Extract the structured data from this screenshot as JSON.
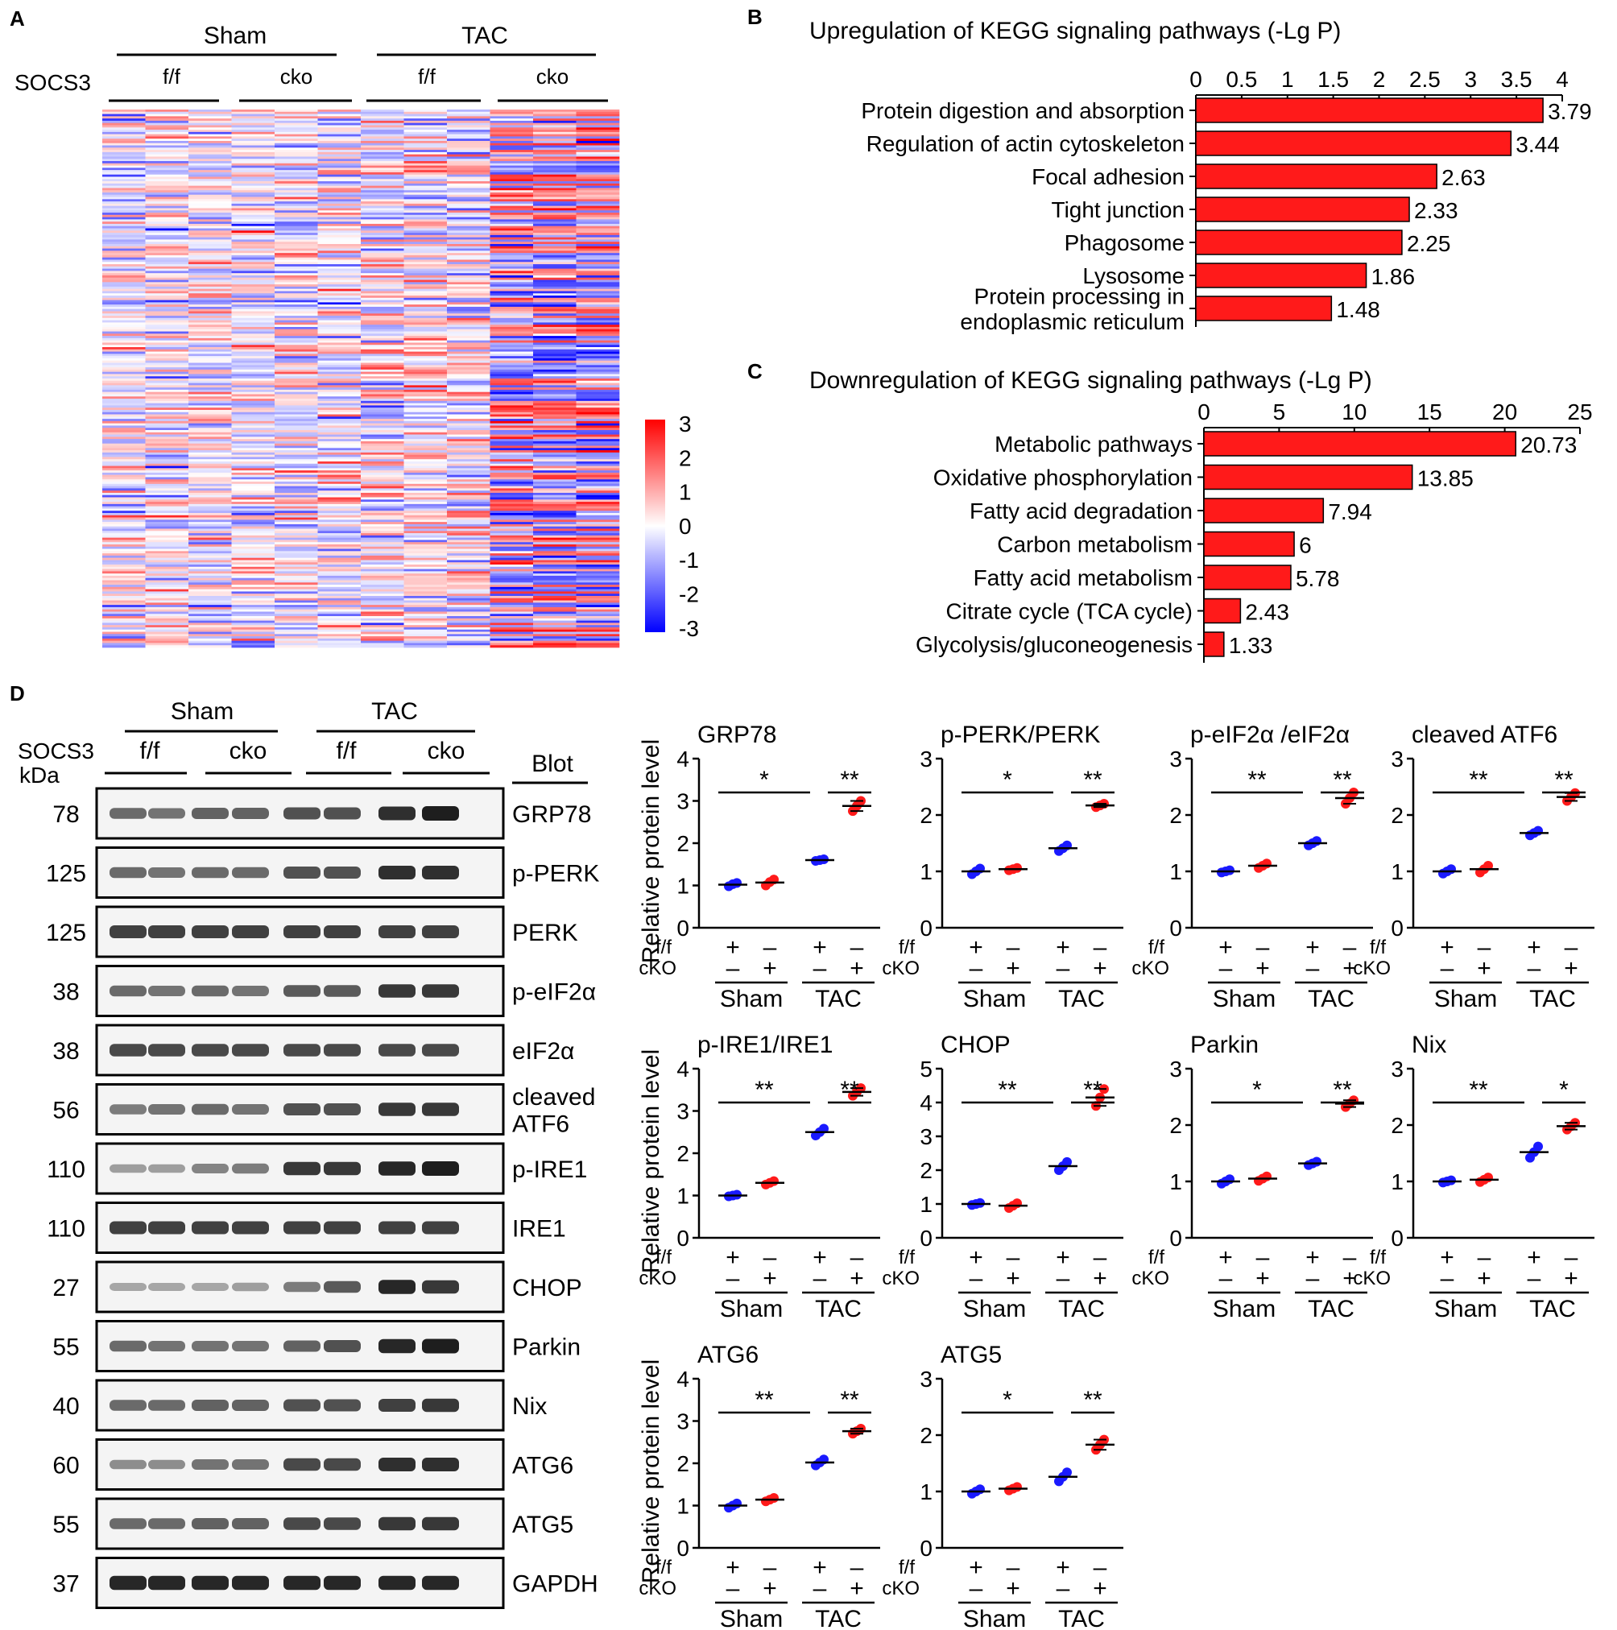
{
  "colors": {
    "f_f": "#1a1aff",
    "cko": "#ff1a1a",
    "bar": "#ff1a1a",
    "heat_pos": "#ff0000",
    "heat_neg": "#0000ff"
  },
  "panel_labels": {
    "a": "A",
    "b": "B",
    "c": "C",
    "d": "D"
  },
  "headers": {
    "socs3": "SOCS3",
    "sham": "Sham",
    "tac": "TAC",
    "ff": "f/f",
    "cko": "cko",
    "kda": "kDa",
    "blot": "Blot"
  },
  "chart_data": [
    {
      "id": "A",
      "type": "heatmap",
      "column_groups": [
        "Sham f/f",
        "Sham cko",
        "TAC f/f",
        "TAC cko"
      ],
      "columns_per_group": 3,
      "colorbar": {
        "min": -3,
        "max": 3,
        "ticks": [
          "3",
          "2",
          "1",
          "0",
          "-1",
          "-2",
          "-3"
        ]
      }
    },
    {
      "id": "B",
      "type": "bar",
      "orientation": "horizontal",
      "title": "Upregulation of KEGG signaling pathways (-Lg P)",
      "xlim": [
        0,
        4
      ],
      "ticks": [
        "0",
        "0.5",
        "1",
        "1.5",
        "2",
        "2.5",
        "3",
        "3.5",
        "4"
      ],
      "categories": [
        "Protein digestion and absorption",
        "Regulation of actin cytoskeleton",
        "Focal adhesion",
        "Tight junction",
        "Phagosome",
        "Lysosome",
        "Protein processing in|endoplasmic reticulum"
      ],
      "values": [
        3.79,
        3.44,
        2.63,
        2.33,
        2.25,
        1.86,
        1.48
      ],
      "labels": [
        "3.79",
        "3.44",
        "2.63",
        "2.33",
        "2.25",
        "1.86",
        "1.48"
      ]
    },
    {
      "id": "C",
      "type": "bar",
      "orientation": "horizontal",
      "title": "Downregulation of KEGG signaling pathways (-Lg P)",
      "xlim": [
        0,
        25
      ],
      "ticks": [
        "0",
        "5",
        "10",
        "15",
        "20",
        "25"
      ],
      "categories": [
        "Metabolic pathways",
        "Oxidative phosphorylation",
        "Fatty acid degradation",
        "Carbon metabolism",
        "Fatty acid metabolism",
        "Citrate cycle (TCA cycle)",
        "Glycolysis/gluconeogenesis"
      ],
      "values": [
        20.73,
        13.85,
        7.94,
        6,
        5.78,
        2.43,
        1.33
      ],
      "labels": [
        "20.73",
        "13.85",
        "7.94",
        "6",
        "5.78",
        "2.43",
        "1.33"
      ]
    },
    {
      "id": "D-blot",
      "type": "table",
      "lanes": [
        "Sham f/f",
        "Sham f/f",
        "Sham cko",
        "Sham cko",
        "TAC f/f",
        "TAC f/f",
        "TAC cko",
        "TAC cko"
      ],
      "rows": [
        {
          "kda": "78",
          "label": "GRP78",
          "intensity": [
            0.55,
            0.5,
            0.6,
            0.6,
            0.7,
            0.7,
            0.9,
            1.0
          ]
        },
        {
          "kda": "125",
          "label": "p-PERK",
          "intensity": [
            0.55,
            0.5,
            0.55,
            0.55,
            0.7,
            0.7,
            0.9,
            0.9
          ]
        },
        {
          "kda": "125",
          "label": "PERK",
          "intensity": [
            0.8,
            0.8,
            0.8,
            0.8,
            0.8,
            0.8,
            0.8,
            0.8
          ]
        },
        {
          "kda": "38",
          "label": "p-eIF2α",
          "intensity": [
            0.55,
            0.5,
            0.55,
            0.5,
            0.65,
            0.65,
            0.85,
            0.85
          ]
        },
        {
          "kda": "38",
          "label": "eIF2α",
          "intensity": [
            0.75,
            0.75,
            0.75,
            0.75,
            0.75,
            0.75,
            0.75,
            0.75
          ]
        },
        {
          "kda": "56",
          "label": "cleaved|ATF6",
          "intensity": [
            0.45,
            0.5,
            0.55,
            0.5,
            0.7,
            0.7,
            0.85,
            0.85
          ]
        },
        {
          "kda": "110",
          "label": "p-IRE1",
          "intensity": [
            0.25,
            0.25,
            0.4,
            0.45,
            0.85,
            0.85,
            0.95,
            1.0
          ]
        },
        {
          "kda": "110",
          "label": "IRE1",
          "intensity": [
            0.8,
            0.8,
            0.8,
            0.8,
            0.8,
            0.8,
            0.8,
            0.8
          ]
        },
        {
          "kda": "27",
          "label": "CHOP",
          "intensity": [
            0.2,
            0.2,
            0.2,
            0.25,
            0.45,
            0.65,
            0.95,
            0.85
          ]
        },
        {
          "kda": "55",
          "label": "Parkin",
          "intensity": [
            0.55,
            0.5,
            0.5,
            0.5,
            0.6,
            0.7,
            0.95,
            1.0
          ]
        },
        {
          "kda": "40",
          "label": "Nix",
          "intensity": [
            0.55,
            0.55,
            0.6,
            0.6,
            0.7,
            0.7,
            0.8,
            0.85
          ]
        },
        {
          "kda": "60",
          "label": "ATG6",
          "intensity": [
            0.35,
            0.35,
            0.5,
            0.5,
            0.75,
            0.75,
            0.9,
            0.9
          ]
        },
        {
          "kda": "55",
          "label": "ATG5",
          "intensity": [
            0.55,
            0.55,
            0.6,
            0.6,
            0.75,
            0.75,
            0.85,
            0.85
          ]
        },
        {
          "kda": "37",
          "label": "GAPDH",
          "intensity": [
            0.95,
            0.95,
            0.95,
            0.95,
            0.95,
            0.95,
            0.95,
            0.95
          ]
        }
      ]
    },
    {
      "id": "D-quant",
      "type": "scatter",
      "ylabel": "Relative protein level",
      "groups": [
        "Sham f/f",
        "Sham cKO",
        "TAC f/f",
        "TAC cKO"
      ],
      "row_labels": {
        "ff": "f/f",
        "cko": "cKO",
        "plus": "+",
        "minus": "–",
        "sham": "Sham",
        "tac": "TAC"
      },
      "panels": [
        {
          "title": "GRP78",
          "ymax": 4,
          "ticks": [
            "0",
            "1",
            "2",
            "3",
            "4"
          ],
          "means": [
            1.02,
            1.07,
            1.6,
            2.88
          ],
          "points": [
            [
              0.98,
              1.03,
              1.06
            ],
            [
              1.0,
              1.08,
              1.14
            ],
            [
              1.58,
              1.6,
              1.62
            ],
            [
              2.76,
              2.88,
              3.0
            ]
          ],
          "sig": [
            "*",
            "**"
          ]
        },
        {
          "title": "p-PERK/PERK",
          "ymax": 3,
          "ticks": [
            "0",
            "1",
            "2",
            "3"
          ],
          "means": [
            1.0,
            1.04,
            1.41,
            2.17
          ],
          "points": [
            [
              0.95,
              1.0,
              1.05
            ],
            [
              1.02,
              1.04,
              1.06
            ],
            [
              1.36,
              1.41,
              1.46
            ],
            [
              2.14,
              2.17,
              2.2
            ]
          ],
          "sig": [
            "*",
            "**"
          ]
        },
        {
          "title": "p-eIF2α /eIF2α",
          "ymax": 3,
          "ticks": [
            "0",
            "1",
            "2",
            "3"
          ],
          "means": [
            1.0,
            1.1,
            1.5,
            2.3
          ],
          "points": [
            [
              0.98,
              1.0,
              1.02
            ],
            [
              1.06,
              1.1,
              1.14
            ],
            [
              1.46,
              1.5,
              1.54
            ],
            [
              2.2,
              2.3,
              2.4
            ]
          ],
          "sig": [
            "**",
            "**"
          ]
        },
        {
          "title": "cleaved ATF6",
          "ymax": 3,
          "ticks": [
            "0",
            "1",
            "2",
            "3"
          ],
          "means": [
            1.0,
            1.04,
            1.68,
            2.32
          ],
          "points": [
            [
              0.96,
              1.0,
              1.04
            ],
            [
              0.98,
              1.04,
              1.1
            ],
            [
              1.64,
              1.68,
              1.72
            ],
            [
              2.25,
              2.32,
              2.39
            ]
          ],
          "sig": [
            "**",
            "**"
          ]
        },
        {
          "title": "p-IRE1/IRE1",
          "ymax": 4,
          "ticks": [
            "0",
            "1",
            "2",
            "3",
            "4"
          ],
          "means": [
            1.0,
            1.3,
            2.5,
            3.45
          ],
          "points": [
            [
              0.98,
              1.0,
              1.02
            ],
            [
              1.26,
              1.3,
              1.34
            ],
            [
              2.42,
              2.5,
              2.58
            ],
            [
              3.36,
              3.45,
              3.54
            ]
          ],
          "sig": [
            "**",
            "**"
          ]
        },
        {
          "title": "CHOP",
          "ymax": 5,
          "ticks": [
            "0",
            "1",
            "2",
            "3",
            "4",
            "5"
          ],
          "means": [
            1.0,
            0.95,
            2.12,
            4.15
          ],
          "points": [
            [
              0.97,
              1.0,
              1.03
            ],
            [
              0.88,
              0.95,
              1.02
            ],
            [
              2.0,
              2.12,
              2.24
            ],
            [
              3.9,
              4.15,
              4.4
            ]
          ],
          "sig": [
            "**",
            "**"
          ]
        },
        {
          "title": "Parkin",
          "ymax": 3,
          "ticks": [
            "0",
            "1",
            "2",
            "3"
          ],
          "means": [
            1.0,
            1.05,
            1.32,
            2.38
          ],
          "points": [
            [
              0.96,
              1.0,
              1.04
            ],
            [
              1.01,
              1.05,
              1.09
            ],
            [
              1.29,
              1.32,
              1.35
            ],
            [
              2.32,
              2.38,
              2.44
            ]
          ],
          "sig": [
            "*",
            "**"
          ]
        },
        {
          "title": "Nix",
          "ymax": 3,
          "ticks": [
            "0",
            "1",
            "2",
            "3"
          ],
          "means": [
            1.0,
            1.03,
            1.52,
            1.98
          ],
          "points": [
            [
              0.98,
              1.0,
              1.02
            ],
            [
              0.99,
              1.03,
              1.07
            ],
            [
              1.42,
              1.52,
              1.62
            ],
            [
              1.92,
              1.98,
              2.04
            ]
          ],
          "sig": [
            "**",
            "*"
          ]
        },
        {
          "title": "ATG6",
          "ymax": 4,
          "ticks": [
            "0",
            "1",
            "2",
            "3",
            "4"
          ],
          "means": [
            1.0,
            1.14,
            2.02,
            2.76
          ],
          "points": [
            [
              0.95,
              1.0,
              1.05
            ],
            [
              1.1,
              1.14,
              1.18
            ],
            [
              1.95,
              2.02,
              2.09
            ],
            [
              2.7,
              2.76,
              2.82
            ]
          ],
          "sig": [
            "**",
            "**"
          ]
        },
        {
          "title": "ATG5",
          "ymax": 3,
          "ticks": [
            "0",
            "1",
            "2",
            "3"
          ],
          "means": [
            1.0,
            1.05,
            1.26,
            1.83
          ],
          "points": [
            [
              0.96,
              1.0,
              1.04
            ],
            [
              1.02,
              1.05,
              1.08
            ],
            [
              1.18,
              1.26,
              1.34
            ],
            [
              1.74,
              1.83,
              1.92
            ]
          ],
          "sig": [
            "*",
            "**"
          ]
        }
      ]
    }
  ]
}
